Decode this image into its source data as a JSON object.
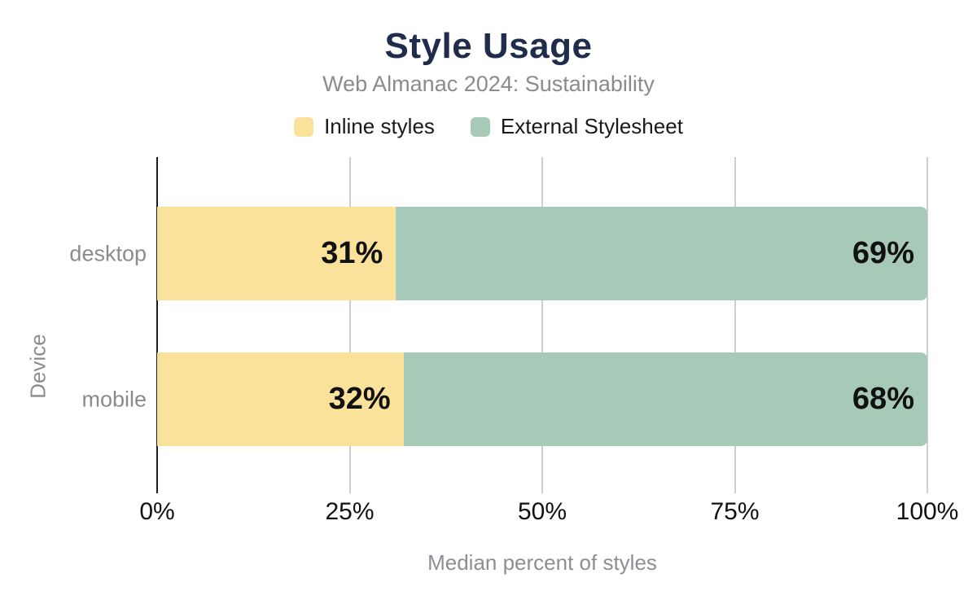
{
  "header": {
    "title": "Style Usage",
    "subtitle": "Web Almanac 2024: Sustainability"
  },
  "legend": {
    "items": [
      {
        "label": "Inline styles",
        "color": "#fbe29a"
      },
      {
        "label": "External Stylesheet",
        "color": "#a7c9b7"
      }
    ]
  },
  "chart_data": {
    "type": "bar",
    "orientation": "horizontal",
    "stacked": true,
    "title": "Style Usage",
    "subtitle": "Web Almanac 2024: Sustainability",
    "categories": [
      "desktop",
      "mobile"
    ],
    "series": [
      {
        "name": "Inline styles",
        "color": "#fbe29a",
        "values": [
          31,
          32
        ],
        "labels": [
          "31%",
          "32%"
        ]
      },
      {
        "name": "External Stylesheet",
        "color": "#a7c9b7",
        "values": [
          69,
          68
        ],
        "labels": [
          "69%",
          "68%"
        ]
      }
    ],
    "xlabel": "Median percent of styles",
    "ylabel": "Device",
    "x_ticks": [
      "0%",
      "25%",
      "50%",
      "75%",
      "100%"
    ],
    "xlim": [
      0,
      100
    ],
    "grid": "vertical",
    "legend_position": "top"
  },
  "colors": {
    "background": "#ffffff",
    "title": "#202c4c",
    "muted_text": "#8b8b8b",
    "tick_text": "#111111",
    "value_label": "#111111",
    "gridline": "#cfcfcf",
    "axis_line": "#1c1c1c"
  }
}
